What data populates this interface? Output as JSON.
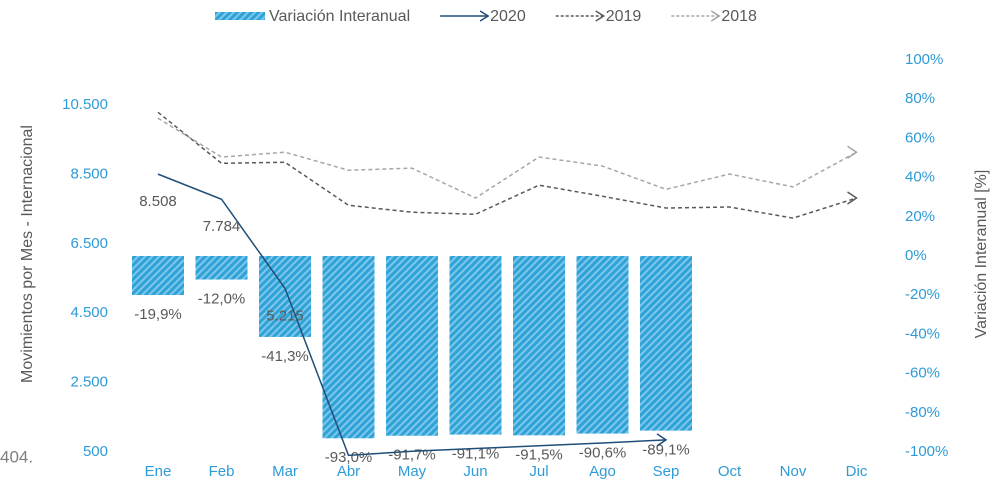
{
  "chart_data": {
    "type": "bar_line",
    "categories": [
      "Ene",
      "Feb",
      "Mar",
      "Abr",
      "May",
      "Jun",
      "Jul",
      "Ago",
      "Sep",
      "Oct",
      "Nov",
      "Dic"
    ],
    "series": [
      {
        "name": "Variación Interanual",
        "type": "bar",
        "axis": "y2",
        "color": "#2ea3d8",
        "values": [
          -19.9,
          -12.0,
          -41.3,
          -93.0,
          -91.7,
          -91.1,
          -91.5,
          -90.6,
          -89.1,
          null,
          null,
          null
        ],
        "value_labels": [
          "-19,9%",
          "-12,0%",
          "-41,3%",
          "-93,0%",
          "-91,7%",
          "-91,1%",
          "-91,5%",
          "-90,6%",
          "-89,1%",
          null,
          null,
          null
        ]
      },
      {
        "name": "2020",
        "type": "line",
        "color": "#1f4e79",
        "dash": false,
        "values": [
          8508,
          7784,
          5215,
          404,
          520,
          600,
          680,
          760,
          850,
          null,
          null,
          null
        ],
        "value_labels": [
          "8.508",
          "7.784",
          "5.215",
          null,
          null,
          null,
          null,
          null,
          null,
          null,
          null,
          null
        ]
      },
      {
        "name": "2019",
        "type": "line",
        "color": "#595959",
        "dash": true,
        "values": [
          10290,
          8820,
          8850,
          7610,
          7410,
          7350,
          8190,
          7870,
          7530,
          7560,
          7240,
          7820
        ]
      },
      {
        "name": "2018",
        "type": "line",
        "color": "#a6a6a6",
        "dash": true,
        "values": [
          10120,
          9000,
          9140,
          8620,
          8680,
          7820,
          9000,
          8740,
          8070,
          8510,
          8140,
          9140
        ]
      }
    ],
    "y_label": "Movimientos por Mes - Internacional",
    "y2_label": "Variación Interanual [%]",
    "ylim": [
      500,
      10500
    ],
    "yticks": [
      500,
      {
        "value": 2500,
        "label": "2.500"
      },
      {
        "value": 4500,
        "label": "4.500"
      },
      {
        "value": 6500,
        "label": "6.500"
      },
      {
        "value": 8500,
        "label": "8.500"
      },
      {
        "value": 10500,
        "label": "10.500"
      }
    ],
    "y2lim": [
      -100,
      100
    ],
    "y2ticks": [
      {
        "value": -100,
        "label": "-100%"
      },
      {
        "value": -80,
        "label": "-80%"
      },
      {
        "value": -60,
        "label": "-60%"
      },
      {
        "value": -40,
        "label": "-40%"
      },
      {
        "value": -20,
        "label": "-20%"
      },
      {
        "value": 0,
        "label": "0%"
      },
      {
        "value": 20,
        "label": "20%"
      },
      {
        "value": 40,
        "label": "40%"
      },
      {
        "value": 60,
        "label": "60%"
      },
      {
        "value": 80,
        "label": "80%"
      },
      {
        "value": 100,
        "label": "100%"
      }
    ],
    "annotations": [
      "404."
    ]
  }
}
